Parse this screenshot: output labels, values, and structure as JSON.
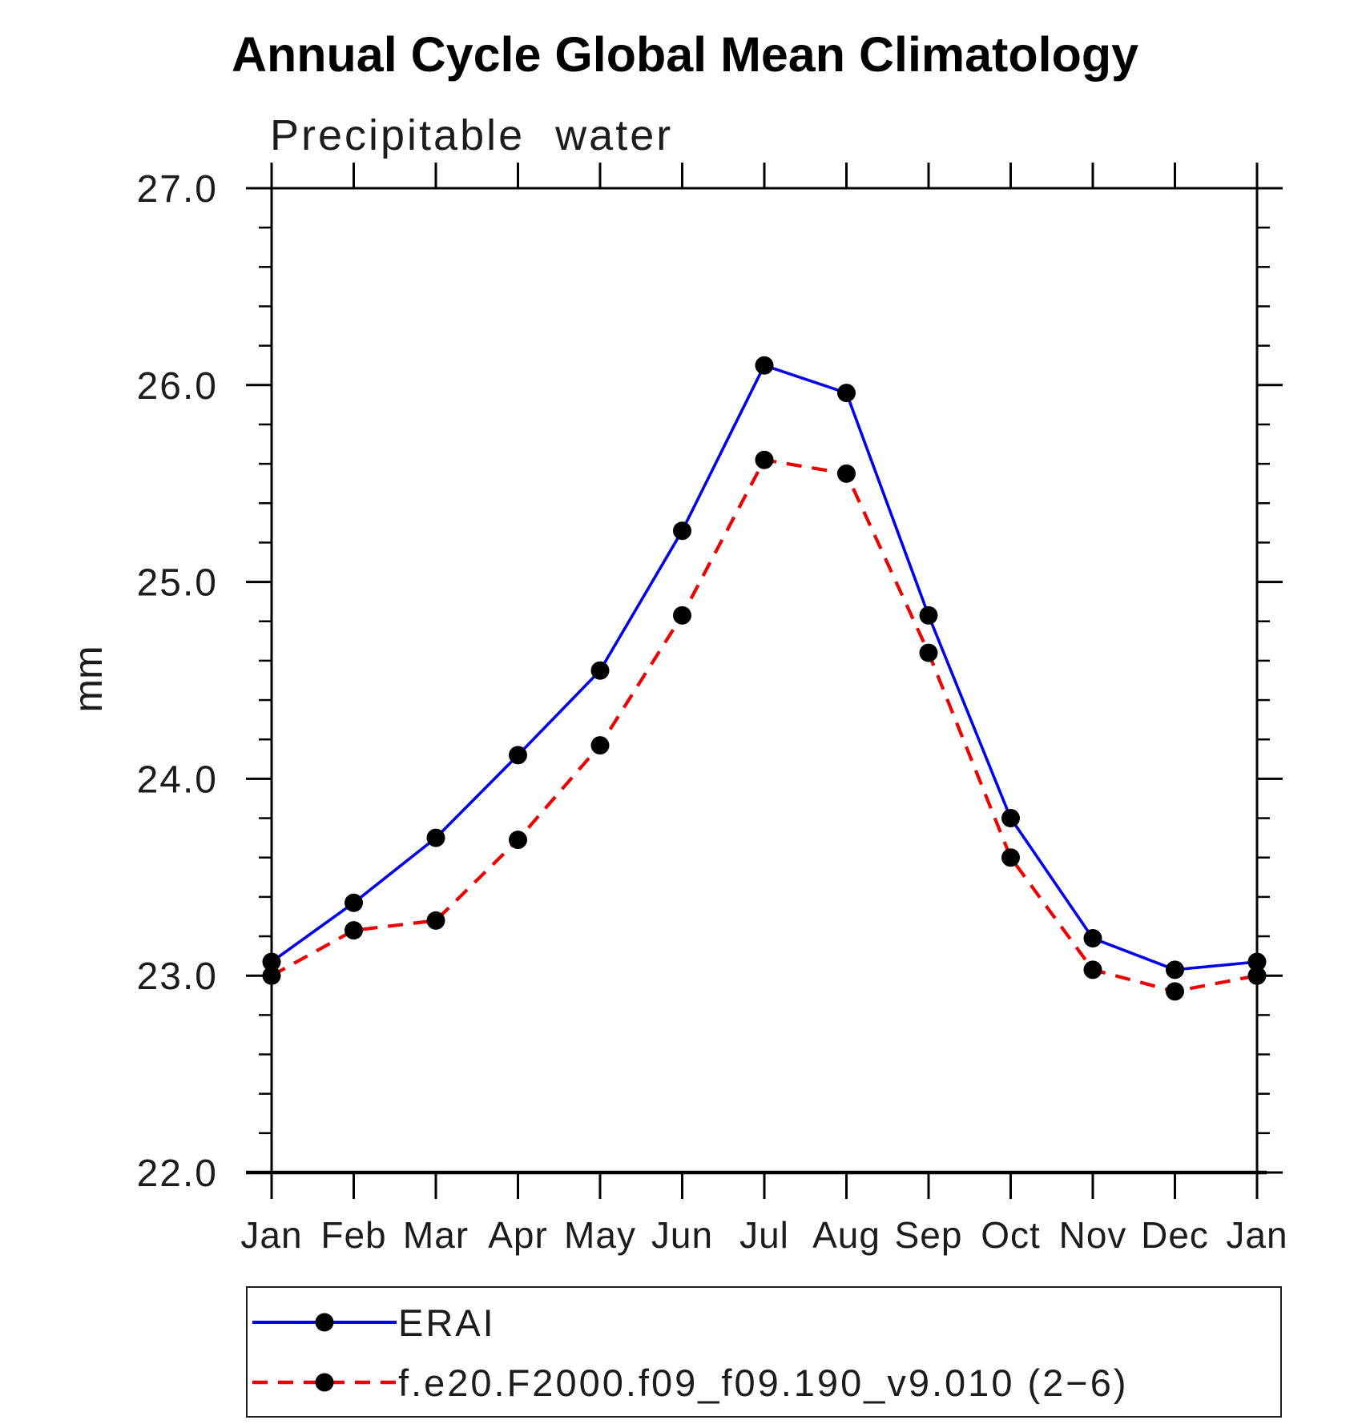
{
  "page": {
    "title": "Annual Cycle Global Mean Climatology",
    "subtitle": "Precipitable water"
  },
  "chart_data": {
    "type": "line",
    "title": "Annual Cycle Global Mean Climatology",
    "subtitle": "Precipitable water",
    "xlabel": "",
    "ylabel": "mm",
    "categories": [
      "Jan",
      "Feb",
      "Mar",
      "Apr",
      "May",
      "Jun",
      "Jul",
      "Aug",
      "Sep",
      "Oct",
      "Nov",
      "Dec",
      "Jan"
    ],
    "ylim": [
      22.0,
      27.0
    ],
    "ytick_labels": [
      "22.0",
      "23.0",
      "24.0",
      "25.0",
      "26.0",
      "27.0"
    ],
    "minor_tick_interval": 0.2,
    "grid": false,
    "legend_position": "bottom",
    "axis_color": "#000000",
    "marker_color": "#000000",
    "series": [
      {
        "name": "ERAI",
        "color": "#0000ee",
        "style": "solid",
        "marker": "circle",
        "values": [
          23.07,
          23.37,
          23.7,
          24.12,
          24.55,
          25.26,
          26.1,
          25.96,
          24.83,
          23.8,
          23.19,
          23.03,
          23.07
        ]
      },
      {
        "name": "f.e20.F2000.f09_f09.190_v9.010 (2−6)",
        "color": "#ee0000",
        "style": "dashed",
        "marker": "circle",
        "values": [
          23.0,
          23.23,
          23.28,
          23.69,
          24.17,
          24.83,
          25.62,
          25.55,
          24.64,
          23.6,
          23.03,
          22.92,
          23.0
        ]
      }
    ]
  }
}
